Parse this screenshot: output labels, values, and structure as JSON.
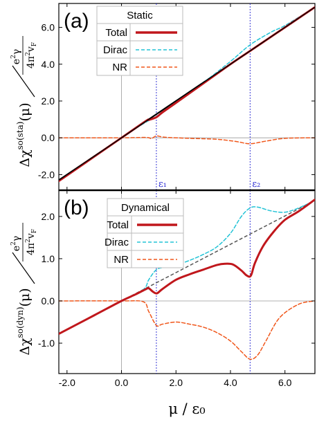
{
  "figure": {
    "xlabel": "μ / ε₀",
    "colors": {
      "total": "#c0171c",
      "dirac": "#22c3d6",
      "nr": "#f0561a",
      "guide": "#555555",
      "vline": "#1f1fd0",
      "black": "#000000"
    }
  },
  "chart_data": [
    {
      "type": "line",
      "panel_label": "(a)",
      "legend_title": "Static",
      "ylabel": "Δχ^so(sta)(μ) / (e²γ / 4π²v_F)",
      "xlim": [
        -2.3,
        7.1
      ],
      "ylim": [
        -2.85,
        7.3
      ],
      "yticks": [
        -2.0,
        0.0,
        2.0,
        4.0,
        6.0
      ],
      "ytick_labels": [
        "-2.0",
        "0.0",
        "2.0",
        "4.0",
        "6.0"
      ],
      "vlines": [
        {
          "x": 1.28,
          "label": "ε₁"
        },
        {
          "x": 4.72,
          "label": "ε₂"
        }
      ],
      "series": [
        {
          "name": "Total",
          "style": "solid",
          "x": [
            -2.3,
            0.0,
            0.9,
            1.0,
            1.28,
            1.5,
            2.0,
            3.0,
            4.0,
            4.72,
            5.5,
            6.0,
            7.1
          ],
          "y": [
            -2.35,
            0.0,
            0.92,
            0.97,
            1.12,
            1.38,
            1.9,
            2.95,
            4.0,
            4.72,
            5.5,
            6.0,
            7.1
          ]
        },
        {
          "name": "Dirac",
          "style": "dashed",
          "x": [
            -2.3,
            0.0,
            0.9,
            1.28,
            1.5,
            2.0,
            3.0,
            4.0,
            4.72,
            5.5,
            6.0,
            7.1
          ],
          "y": [
            -2.35,
            0.0,
            0.85,
            1.15,
            1.4,
            1.95,
            3.0,
            4.15,
            5.05,
            5.75,
            6.1,
            7.1
          ]
        },
        {
          "name": "NR",
          "style": "dashed",
          "x": [
            -2.3,
            0.0,
            0.9,
            1.1,
            1.28,
            1.6,
            2.5,
            3.5,
            4.2,
            4.72,
            5.3,
            6.0,
            7.1
          ],
          "y": [
            0.0,
            0.0,
            0.02,
            -0.04,
            0.1,
            0.03,
            -0.03,
            -0.08,
            -0.2,
            -0.32,
            -0.18,
            -0.03,
            0.0
          ]
        }
      ],
      "reference": {
        "style": "solid",
        "color": "black",
        "x": [
          -2.3,
          7.1
        ],
        "y": [
          -2.3,
          7.1
        ]
      }
    },
    {
      "type": "line",
      "panel_label": "(b)",
      "legend_title": "Dynamical",
      "ylabel": "Δχ^so(dyn)(μ) / (e²γ / 4π²v_F)",
      "xlim": [
        -2.3,
        7.1
      ],
      "ylim": [
        -1.72,
        2.62
      ],
      "xticks": [
        -2.0,
        0.0,
        2.0,
        4.0,
        6.0
      ],
      "xtick_labels": [
        "-2.0",
        "0.0",
        "2.0",
        "4.0",
        "6.0"
      ],
      "yticks": [
        -1.0,
        0.0,
        1.0,
        2.0
      ],
      "ytick_labels": [
        "-1.0",
        "0.0",
        "1.0",
        "2.0"
      ],
      "vlines": [
        {
          "x": 1.28,
          "label": "ε₁"
        },
        {
          "x": 4.72,
          "label": "ε₂"
        }
      ],
      "series": [
        {
          "name": "Total",
          "style": "solid",
          "x": [
            -2.3,
            -1.0,
            0.0,
            0.5,
            0.9,
            1.0,
            1.15,
            1.3,
            1.5,
            2.0,
            2.5,
            3.0,
            3.5,
            3.8,
            4.1,
            4.4,
            4.6,
            4.75,
            4.9,
            5.2,
            5.6,
            6.0,
            6.5,
            7.1
          ],
          "y": [
            -0.78,
            -0.34,
            0.0,
            0.15,
            0.28,
            0.3,
            0.22,
            0.18,
            0.28,
            0.5,
            0.63,
            0.74,
            0.85,
            0.88,
            0.86,
            0.72,
            0.6,
            0.6,
            0.9,
            1.3,
            1.65,
            1.92,
            2.12,
            2.4
          ]
        },
        {
          "name": "Dirac",
          "style": "dashed",
          "x": [
            -2.3,
            0.0,
            0.8,
            1.0,
            1.28,
            1.6,
            2.0,
            2.5,
            3.0,
            3.5,
            4.0,
            4.4,
            4.72,
            5.0,
            5.5,
            6.0,
            6.5,
            7.1
          ],
          "y": [
            -0.78,
            0.0,
            0.27,
            0.5,
            0.74,
            0.8,
            0.85,
            0.96,
            1.1,
            1.28,
            1.6,
            2.0,
            2.2,
            2.22,
            2.13,
            2.1,
            2.2,
            2.38
          ]
        },
        {
          "name": "NR",
          "style": "dashed",
          "x": [
            -2.3,
            0.0,
            0.8,
            1.0,
            1.28,
            1.5,
            2.0,
            2.5,
            3.0,
            3.5,
            4.0,
            4.4,
            4.72,
            5.0,
            5.3,
            5.8,
            6.5,
            7.1
          ],
          "y": [
            0.0,
            0.0,
            -0.02,
            -0.25,
            -0.58,
            -0.55,
            -0.5,
            -0.55,
            -0.62,
            -0.75,
            -0.95,
            -1.2,
            -1.38,
            -1.28,
            -0.95,
            -0.4,
            -0.08,
            0.0
          ]
        }
      ],
      "reference": {
        "style": "dashed",
        "color": "guide",
        "x": [
          0.0,
          7.1
        ],
        "y": [
          0.0,
          2.38
        ]
      }
    }
  ]
}
